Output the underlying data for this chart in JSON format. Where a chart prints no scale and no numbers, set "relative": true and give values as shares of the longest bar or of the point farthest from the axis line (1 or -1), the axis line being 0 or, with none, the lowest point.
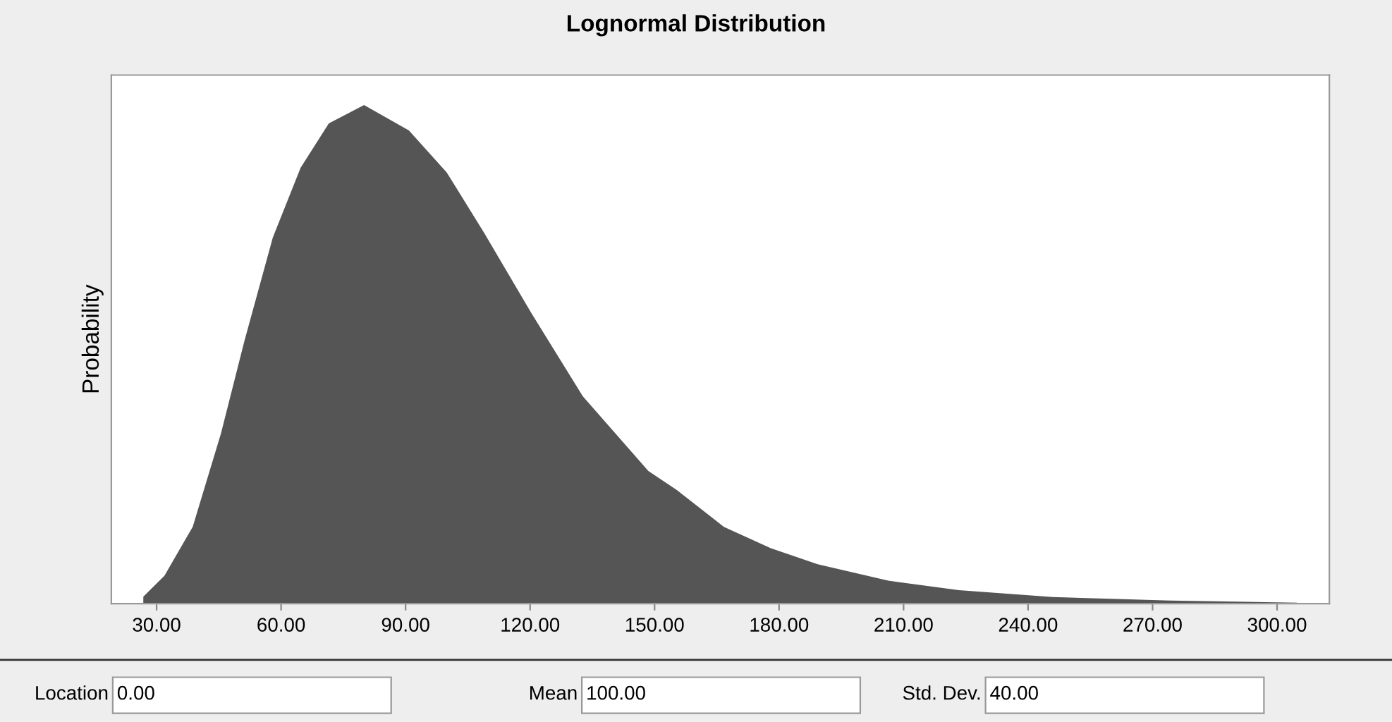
{
  "chart_data": {
    "type": "area",
    "title": "Lognormal Distribution",
    "ylabel": "Probability",
    "relative": true,
    "x": [
      26.8,
      31.9,
      38.7,
      45.5,
      51.2,
      58.0,
      64.7,
      71.5,
      80.0,
      90.8,
      99.9,
      108.9,
      120.2,
      132.7,
      148.5,
      155.3,
      166.7,
      178.0,
      189.3,
      206.3,
      223.3,
      245.9,
      274.2,
      304.8
    ],
    "values": [
      0.014,
      0.056,
      0.154,
      0.341,
      0.528,
      0.734,
      0.874,
      0.963,
      1.0,
      0.949,
      0.865,
      0.744,
      0.584,
      0.416,
      0.266,
      0.228,
      0.154,
      0.111,
      0.079,
      0.046,
      0.027,
      0.013,
      0.006,
      0.002
    ],
    "color": "#555555",
    "xlim": [
      19.1,
      312.6
    ],
    "xticks": [
      {
        "value": 30,
        "label": "30.00"
      },
      {
        "value": 60,
        "label": "60.00"
      },
      {
        "value": 90,
        "label": "90.00"
      },
      {
        "value": 120,
        "label": "120.00"
      },
      {
        "value": 150,
        "label": "150.00"
      },
      {
        "value": 180,
        "label": "180.00"
      },
      {
        "value": 210,
        "label": "210.00"
      },
      {
        "value": 240,
        "label": "240.00"
      },
      {
        "value": 270,
        "label": "270.00"
      },
      {
        "value": 300,
        "label": "300.00"
      }
    ],
    "tick_labels": "x",
    "grid": false,
    "annotations": [
      "Location",
      "0.00",
      "Mean",
      "100.00",
      "Std. Dev.",
      "40.00"
    ]
  }
}
